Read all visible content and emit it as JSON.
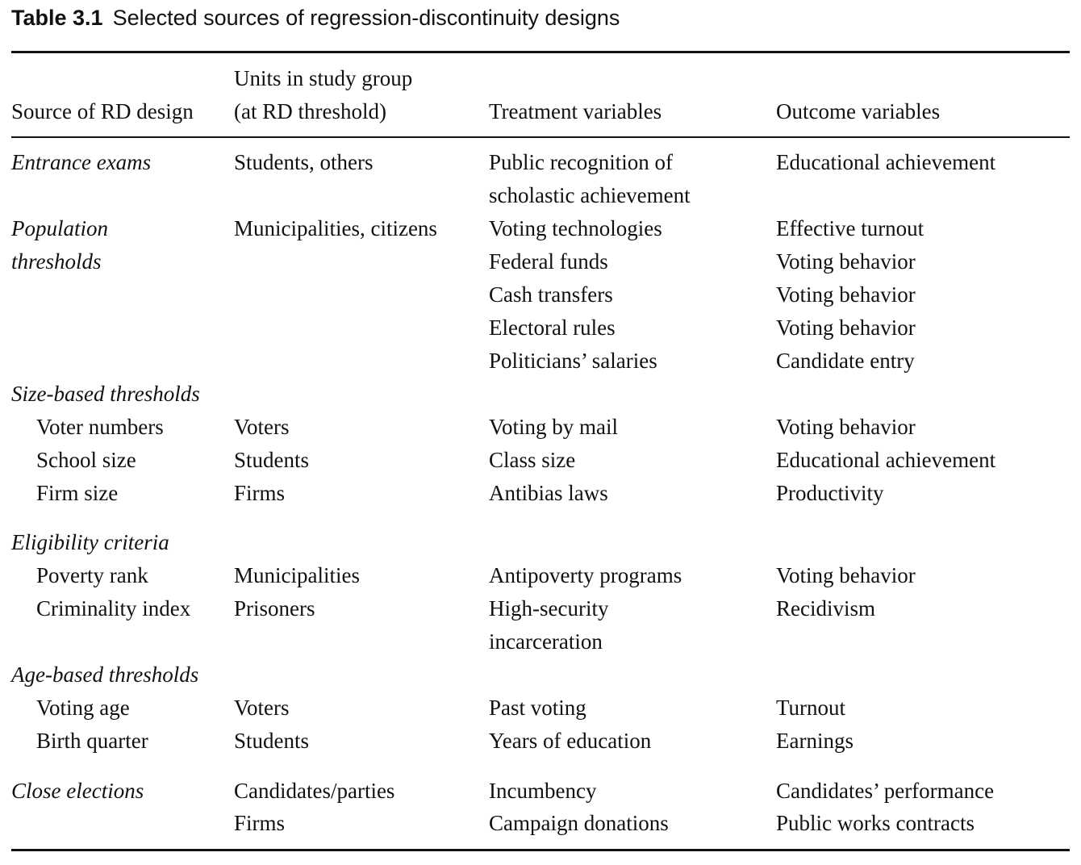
{
  "caption": {
    "label": "Table 3.1",
    "title": "Selected sources of regression-discontinuity designs"
  },
  "header": {
    "col1": "Source of RD design",
    "col2_line1": "Units in study group",
    "col2_line2": "(at RD threshold)",
    "col3": "Treatment variables",
    "col4": "Outcome variables"
  },
  "rows": [
    {
      "source": "Entrance exams",
      "units": "Students, others",
      "treatment": "Public recognition of",
      "outcome": "Educational achievement"
    },
    {
      "treatment": "scholastic achievement"
    },
    {
      "source": "Population",
      "units": "Municipalities, citizens",
      "treatment": "Voting technologies",
      "outcome": "Effective turnout"
    },
    {
      "source": "thresholds",
      "treatment": "Federal funds",
      "outcome": "Voting behavior"
    },
    {
      "treatment": "Cash transfers",
      "outcome": "Voting behavior"
    },
    {
      "treatment": "Electoral rules",
      "outcome": "Voting behavior"
    },
    {
      "treatment": "Politicians’ salaries",
      "outcome": "Candidate entry"
    },
    {
      "source": "Size-based thresholds"
    },
    {
      "source": "Voter numbers",
      "units": "Voters",
      "treatment": "Voting by mail",
      "outcome": "Voting behavior"
    },
    {
      "source": "School size",
      "units": "Students",
      "treatment": "Class size",
      "outcome": "Educational achievement"
    },
    {
      "source": "Firm size",
      "units": "Firms",
      "treatment": "Antibias laws",
      "outcome": "Productivity"
    },
    {
      "source": "Eligibility criteria"
    },
    {
      "source": "Poverty rank",
      "units": "Municipalities",
      "treatment": "Antipoverty programs",
      "outcome": "Voting behavior"
    },
    {
      "source": "Criminality index",
      "units": "Prisoners",
      "treatment": "High-security",
      "outcome": "Recidivism"
    },
    {
      "treatment": "incarceration"
    },
    {
      "source": "Age-based thresholds"
    },
    {
      "source": "Voting age",
      "units": "Voters",
      "treatment": "Past voting",
      "outcome": "Turnout"
    },
    {
      "source": "Birth quarter",
      "units": "Students",
      "treatment": "Years of education",
      "outcome": "Earnings"
    },
    {
      "source": "Close elections",
      "units": "Candidates/parties",
      "treatment": "Incumbency",
      "outcome": "Candidates’ performance"
    },
    {
      "units": "Firms",
      "treatment": "Campaign donations",
      "outcome": "Public works contracts"
    }
  ]
}
